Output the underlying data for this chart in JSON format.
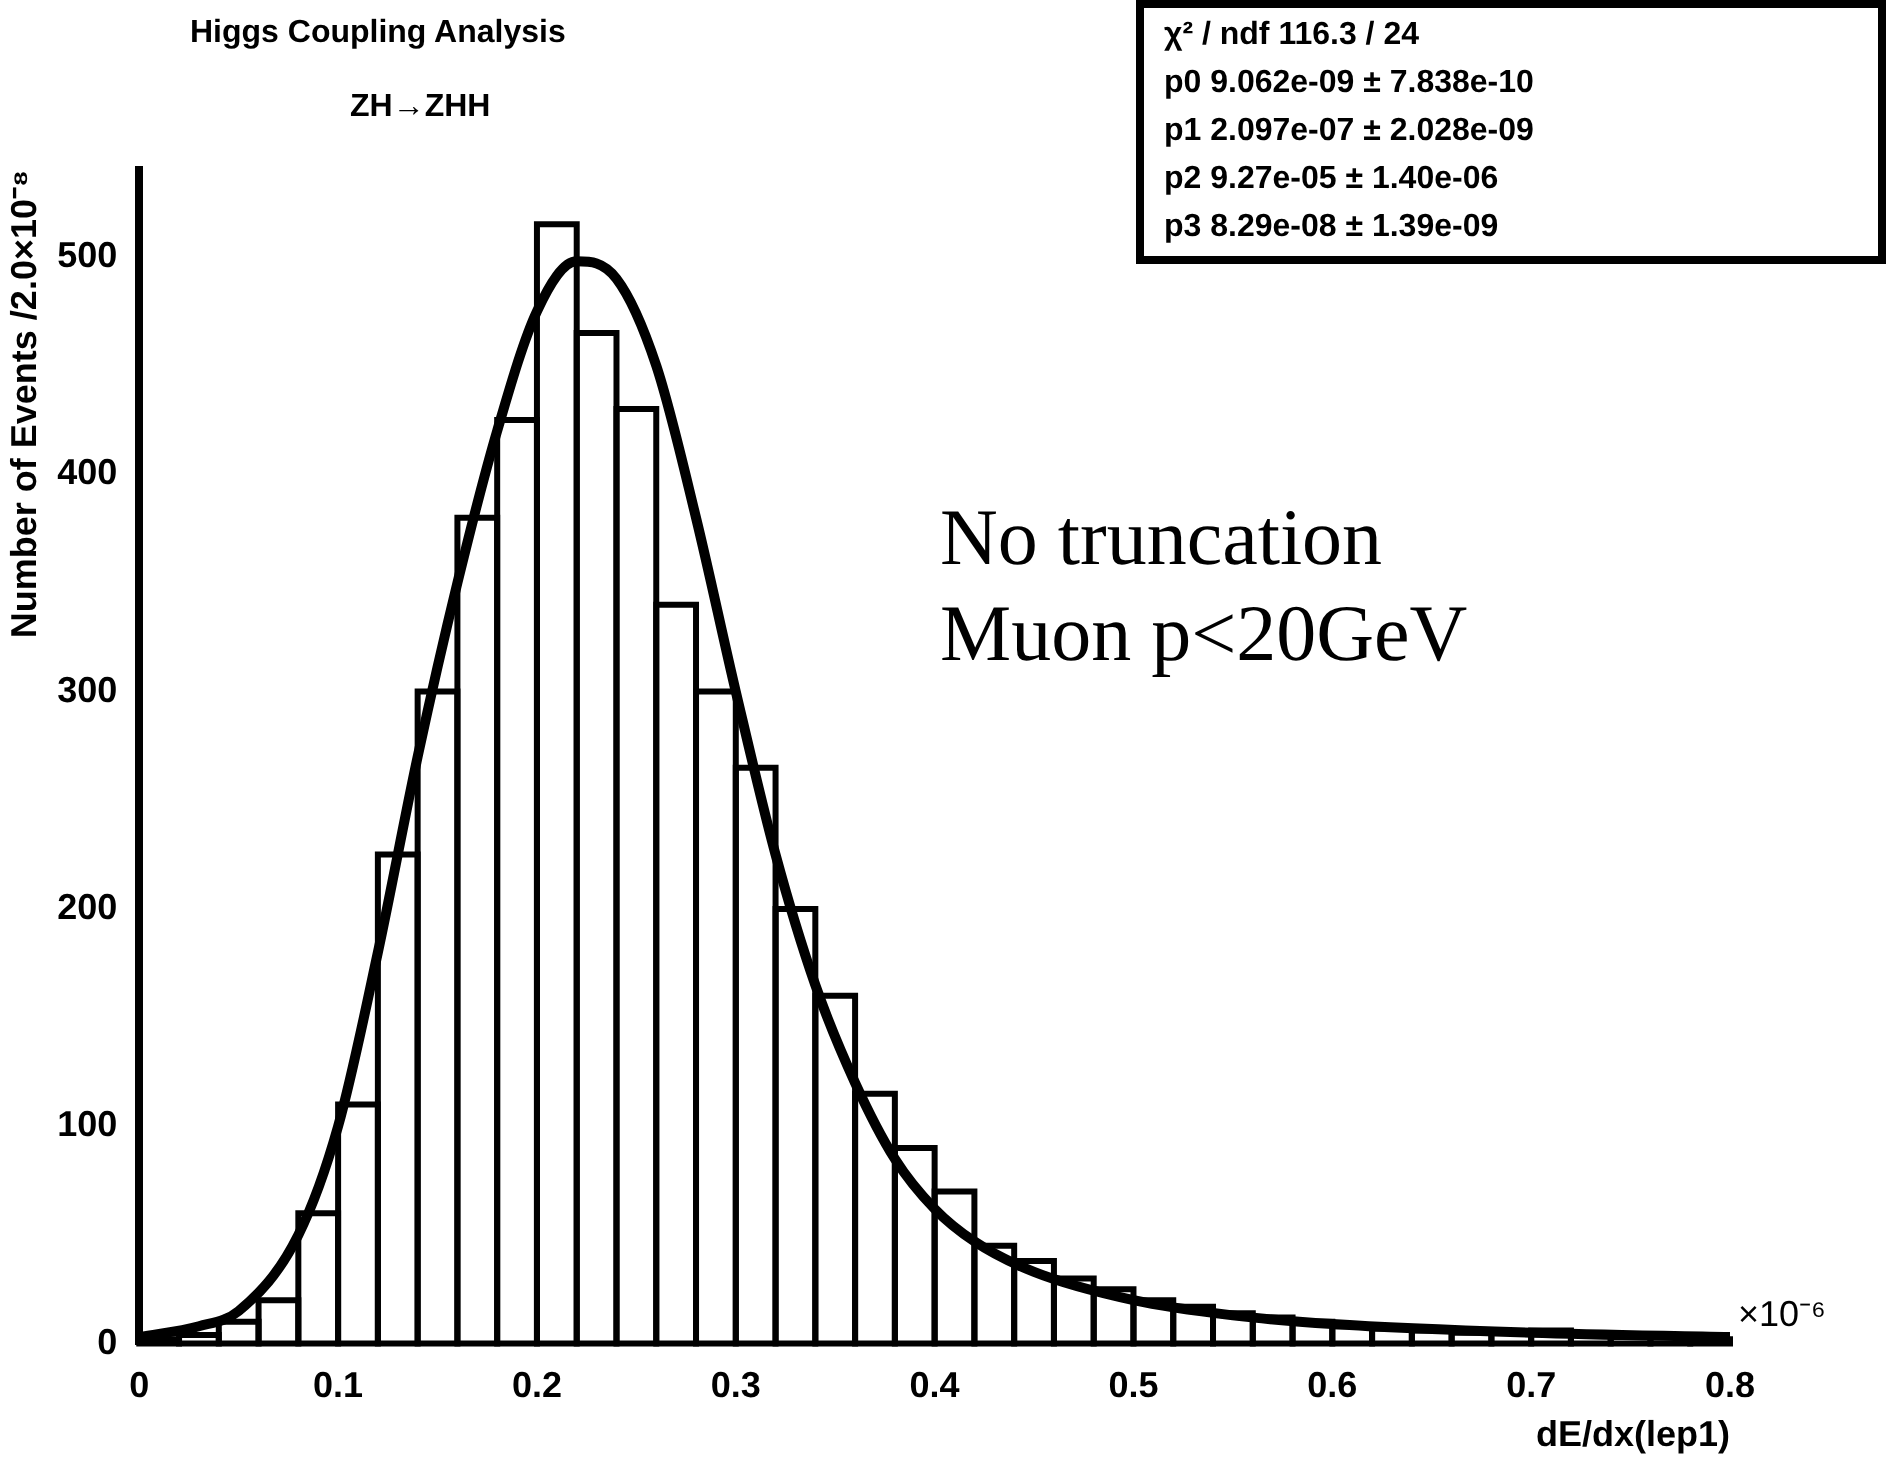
{
  "chart_data": {
    "type": "histogram",
    "title": "Higgs Coupling Analysis",
    "subtitle": "ZH→ZHH",
    "xlabel": "dE/dx(lep1)",
    "ylabel": "Number of Events /2.0×10⁻⁸",
    "bins": [
      0,
      0.02,
      0.04,
      0.06,
      0.08,
      0.1,
      0.12,
      0.14,
      0.16,
      0.18,
      0.2,
      0.22,
      0.24,
      0.26,
      0.28,
      0.3,
      0.32,
      0.34,
      0.36,
      0.38,
      0.4,
      0.42,
      0.44,
      0.46,
      0.48,
      0.5,
      0.52,
      0.54,
      0.56,
      0.58,
      0.6,
      0.62,
      0.64,
      0.66,
      0.68,
      0.7,
      0.72,
      0.74,
      0.76,
      0.78,
      0.8
    ],
    "color": "#000000",
    "values": [
      2,
      4,
      10,
      20,
      60,
      110,
      225,
      300,
      380,
      425,
      515,
      465,
      430,
      340,
      300,
      265,
      200,
      160,
      115,
      90,
      70,
      45,
      38,
      30,
      25,
      20,
      17,
      14,
      12,
      10,
      8,
      7,
      6,
      5,
      5,
      6,
      4,
      3,
      3,
      2
    ],
    "series": [
      {
        "type": "line",
        "color": "#000000",
        "x": [
          0,
          0.03,
          0.05,
          0.08,
          0.1,
          0.12,
          0.14,
          0.16,
          0.18,
          0.2,
          0.22,
          0.24,
          0.26,
          0.28,
          0.3,
          0.32,
          0.34,
          0.36,
          0.38,
          0.4,
          0.42,
          0.45,
          0.5,
          0.55,
          0.6,
          0.7,
          0.8
        ],
        "values": [
          3,
          8,
          15,
          50,
          100,
          180,
          270,
          350,
          420,
          475,
          498,
          490,
          450,
          380,
          300,
          225,
          165,
          120,
          85,
          62,
          47,
          33,
          20,
          13,
          9,
          5,
          3
        ]
      }
    ],
    "xlim": [
      0,
      0.8
    ],
    "xticks": [
      0,
      0.1,
      0.2,
      0.3,
      0.4,
      0.5,
      0.6,
      0.7,
      0.8
    ],
    "ylim": [
      0,
      540
    ],
    "yticks": [
      0,
      100,
      200,
      300,
      400,
      500
    ],
    "annotations": [
      "χ² / ndf 116.3 / 24",
      "p0 9.062e-09 ± 7.838e-10",
      "p1 2.097e-07 ± 2.028e-09",
      "p2 9.27e-05 ± 1.40e-06",
      "p3 8.29e-08 ± 1.39e-09",
      "No truncation",
      "Muon p<20GeV",
      "×10⁻⁶"
    ]
  }
}
